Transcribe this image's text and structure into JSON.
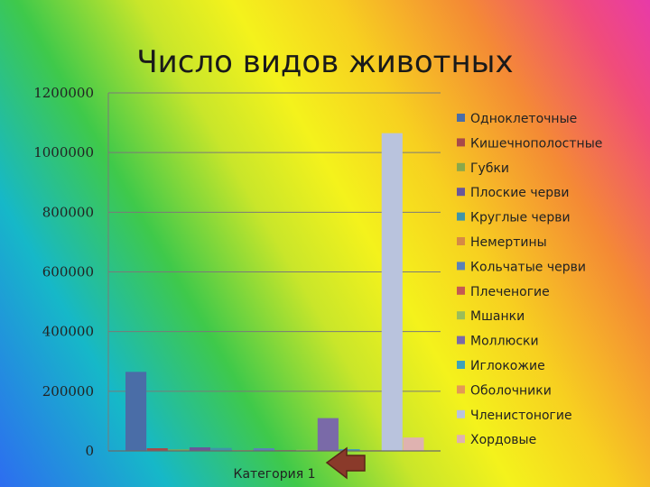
{
  "chart_data": {
    "type": "bar",
    "title": "Число видов животных",
    "categories": [
      "Категория 1"
    ],
    "ylim": [
      0,
      1200000
    ],
    "yticks": [
      "0",
      "200000",
      "400000",
      "600000",
      "800000",
      "1000000",
      "1200000"
    ],
    "grid": true,
    "legend_position": "right",
    "series": [
      {
        "name": "Одноклеточные",
        "values": [
          265000
        ],
        "color": "#4a6da7"
      },
      {
        "name": "Кишечнополостные",
        "values": [
          9000
        ],
        "color": "#a84a4a"
      },
      {
        "name": "Губки",
        "values": [
          5000
        ],
        "color": "#8aa84a"
      },
      {
        "name": "Плоские черви",
        "values": [
          12000
        ],
        "color": "#6a579a"
      },
      {
        "name": "Круглые черви",
        "values": [
          10000
        ],
        "color": "#3f95a8"
      },
      {
        "name": "Немертины",
        "values": [
          1000
        ],
        "color": "#d68a45"
      },
      {
        "name": "Кольчатые черви",
        "values": [
          9000
        ],
        "color": "#5b82b8"
      },
      {
        "name": "Плеченогие",
        "values": [
          300
        ],
        "color": "#c45a52"
      },
      {
        "name": "Мшанки",
        "values": [
          4000
        ],
        "color": "#9bbd5a"
      },
      {
        "name": "Моллюски",
        "values": [
          110000
        ],
        "color": "#7a6aa8"
      },
      {
        "name": "Иглокожие",
        "values": [
          6000
        ],
        "color": "#3fa2b8"
      },
      {
        "name": "Оболочники",
        "values": [
          1500
        ],
        "color": "#e39a55"
      },
      {
        "name": "Членистоногие",
        "values": [
          1065000
        ],
        "color": "#b9c3dd"
      },
      {
        "name": "Хордовые",
        "values": [
          45000
        ],
        "color": "#dfb2b0"
      }
    ]
  },
  "annotation": {
    "arrow_color": "#8a3a2a"
  }
}
